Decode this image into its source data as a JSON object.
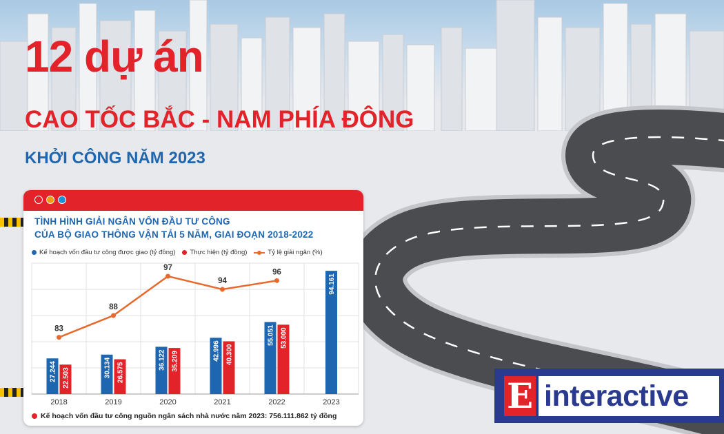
{
  "header": {
    "title": "12 dự án",
    "subtitle": "CAO TỐC BẮC - NAM PHÍA ĐÔNG",
    "tagline": "KHỞI CÔNG NĂM 2023"
  },
  "card": {
    "title_line1": "TÌNH HÌNH GIẢI NGÂN VỐN ĐẦU TƯ CÔNG",
    "title_line2": "CỦA BỘ GIAO THÔNG VẬN TẢI 5 NĂM, GIAI ĐOẠN 2018-2022",
    "footnote": "Kế hoạch vốn đầu tư công nguồn ngân sách nhà nước năm 2023: 756.111.862 tỷ đồng",
    "window_dots": [
      "#e2232a",
      "#f39c12",
      "#1f8fd6"
    ]
  },
  "logo": {
    "letter": "E",
    "text": "interactive"
  },
  "colors": {
    "plan": "#1f66b0",
    "actual": "#e2232a",
    "rate": "#e8692c",
    "accent": "#e2232a"
  },
  "chart_data": {
    "type": "bar",
    "categories": [
      "2018",
      "2019",
      "2020",
      "2021",
      "2022",
      "2023"
    ],
    "series": [
      {
        "name": "Kế hoạch vốn đầu tư công được giao (tỷ đồng)",
        "type": "bar",
        "values": [
          27244,
          30134,
          36122,
          42996,
          55051,
          94161
        ],
        "labels": [
          "27.244",
          "30.134",
          "36.122",
          "42.996",
          "55.051",
          "94.161"
        ]
      },
      {
        "name": "Thực hiện (tỷ đồng)",
        "type": "bar",
        "values": [
          22503,
          26575,
          35209,
          40300,
          53000,
          null
        ],
        "labels": [
          "22.503",
          "26.575",
          "35.209",
          "40.300",
          "53.000",
          ""
        ]
      },
      {
        "name": "Tỷ lệ giải ngân (%)",
        "type": "line",
        "values": [
          83,
          88,
          97,
          94,
          96,
          null
        ],
        "labels": [
          "83",
          "88",
          "97",
          "94",
          "96",
          ""
        ]
      }
    ],
    "grid": true
  }
}
